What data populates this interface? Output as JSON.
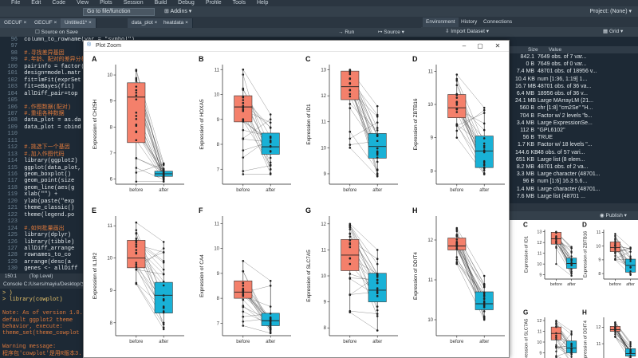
{
  "menubar": {
    "items": [
      "File",
      "Edit",
      "Code",
      "View",
      "Plots",
      "Session",
      "Build",
      "Debug",
      "Profile",
      "Tools",
      "Help"
    ]
  },
  "toolbar": {
    "goto_placeholder": "Go to file/function",
    "addins_label": "Addins",
    "project_label": "Project: (None)"
  },
  "editor": {
    "tabs": [
      "GECUF",
      "GECUF",
      "Untitled1*",
      "data_plot",
      "heatdata"
    ],
    "source_on_save": "Source on Save",
    "run_label": "Run",
    "source_label": "Source",
    "lines": [
      {
        "n": "96",
        "text": "    column_to_rowname(var = \"symbol\")",
        "kind": "code"
      },
      {
        "n": "97",
        "text": "",
        "kind": "code"
      },
      {
        "n": "98",
        "text": "  #.寻找差异基因",
        "kind": "cmt"
      },
      {
        "n": "99",
        "text": "  #.年龄、配对的差异分析",
        "kind": "cmt"
      },
      {
        "n": "100",
        "text": "  pairinfo = factor(",
        "kind": "code"
      },
      {
        "n": "101",
        "text": "  design=model.matr",
        "kind": "code"
      },
      {
        "n": "102",
        "text": "  fit=lmFit(exprSet",
        "kind": "code"
      },
      {
        "n": "103",
        "text": "  fit=eBayes(fit)",
        "kind": "code"
      },
      {
        "n": "104",
        "text": "  allDiff_pair=top",
        "kind": "code"
      },
      {
        "n": "105",
        "text": "",
        "kind": "code"
      },
      {
        "n": "106",
        "text": "  #.作图数据(配对)",
        "kind": "cmt"
      },
      {
        "n": "107",
        "text": "  #.重组各种数据",
        "kind": "cmt"
      },
      {
        "n": "108",
        "text": "  data_plot = as.da",
        "kind": "code"
      },
      {
        "n": "109",
        "text": "  data_plot = cbind",
        "kind": "code"
      },
      {
        "n": "110",
        "text": "",
        "kind": "code"
      },
      {
        "n": "111",
        "text": "",
        "kind": "code"
      },
      {
        "n": "112",
        "text": "  #.挑选下一个基因",
        "kind": "cmt"
      },
      {
        "n": "113",
        "text": "  #.加入作图代码",
        "kind": "cmt"
      },
      {
        "n": "114",
        "text": "  library(ggplot2)",
        "kind": "code"
      },
      {
        "n": "115",
        "text": "  ggplot(data_plot,",
        "kind": "code"
      },
      {
        "n": "116",
        "text": "    geom_boxplot()",
        "kind": "code"
      },
      {
        "n": "117",
        "text": "    geom_point(size",
        "kind": "code"
      },
      {
        "n": "118",
        "text": "    geom_line(aes(g",
        "kind": "code"
      },
      {
        "n": "119",
        "text": "    xlab(\"\") +",
        "kind": "code"
      },
      {
        "n": "120",
        "text": "    ylab(paste(\"exp",
        "kind": "code"
      },
      {
        "n": "121",
        "text": "    theme_classic()",
        "kind": "code"
      },
      {
        "n": "122",
        "text": "    theme(legend.po",
        "kind": "code"
      },
      {
        "n": "123",
        "text": "",
        "kind": "code"
      },
      {
        "n": "124",
        "text": "  #.如何批量画出",
        "kind": "cmt"
      },
      {
        "n": "125",
        "text": "  library(dplyr)",
        "kind": "code"
      },
      {
        "n": "126",
        "text": "  library(tibble)",
        "kind": "code"
      },
      {
        "n": "127",
        "text": "  allDiff_arrange",
        "kind": "code"
      },
      {
        "n": "128",
        "text": "    rownames_to_co",
        "kind": "code"
      },
      {
        "n": "129",
        "text": "    arrange(desc(a",
        "kind": "code"
      },
      {
        "n": "130",
        "text": "  genes <- allDiff",
        "kind": "code"
      }
    ],
    "status_position": "150:1",
    "status_scope": "(Top Level)"
  },
  "console": {
    "header": "Console  C:/Users/mayiu/Desktop/文章/",
    "lines": [
      {
        "text": "> )",
        "kind": "input"
      },
      {
        "text": "> library(cowplot)",
        "kind": "input"
      },
      {
        "text": "",
        "kind": "norm"
      },
      {
        "text": "Note: As of version 1.0.",
        "kind": "out"
      },
      {
        "text": "  default ggplot2 theme",
        "kind": "out"
      },
      {
        "text": "  behavior, execute:",
        "kind": "out"
      },
      {
        "text": "  theme_set(theme_cowplot",
        "kind": "out"
      },
      {
        "text": "",
        "kind": "norm"
      },
      {
        "text": "Warning message:",
        "kind": "out"
      },
      {
        "text": "程序包'cowplot'是用R版本3.",
        "kind": "out"
      }
    ]
  },
  "environment": {
    "tabs": [
      "Environment",
      "History",
      "Connections"
    ],
    "import_label": "Import Dataset",
    "grid_label": "Grid",
    "header": {
      "size": "Size",
      "value": "Value"
    },
    "rows": [
      {
        "size": "842.1",
        "value": "7649 obs. of 7 var..."
      },
      {
        "size": "0 B",
        "value": "7649 obs. of 0 var..."
      },
      {
        "size": "7.4 MB",
        "value": "48701 obs. of 18956 v..."
      },
      {
        "size": "10.4 KB",
        "value": "num [1:36, 1:19] 1..."
      },
      {
        "size": "16.7 MB",
        "value": "48701 obs. of 36 va..."
      },
      {
        "size": "6.4 MB",
        "value": "18956 obs. of 36 v..."
      },
      {
        "size": "24.1 MB",
        "value": "Large MArrayLM (21..."
      },
      {
        "size": "560 B",
        "value": "chr [1:8] \"cm2Se\" \"H..."
      },
      {
        "size": "704 B",
        "value": "Factor w/ 2 levels \"b..."
      },
      {
        "size": "3.4 MB",
        "value": "Large ExpressionSe..."
      },
      {
        "size": "112 B",
        "value": "\"GPL6102\""
      },
      {
        "size": "56 B",
        "value": "TRUE"
      },
      {
        "size": "1.7 KB",
        "value": "Factor w/ 18 levels \"..."
      },
      {
        "size": "144.6 KB",
        "value": "48 obs. of 57 vari..."
      },
      {
        "size": "651 KB",
        "value": "Large list (8 elem..."
      },
      {
        "size": "8.2 MB",
        "value": "48701 obs. of 2 va..."
      },
      {
        "size": "3.3 MB",
        "value": "Large character (48701..."
      },
      {
        "size": "96 B",
        "value": "num [1:6] 16.3 5.6..."
      },
      {
        "size": "1.4 MB",
        "value": "Large character (48701..."
      },
      {
        "size": "7.6 MB",
        "value": "Large list (48701 ..."
      }
    ]
  },
  "viewer": {
    "publish_label": "Publish"
  },
  "plot_window": {
    "title": "Plot Zoom"
  },
  "chart_data": {
    "type": "box",
    "categories": [
      "before",
      "after"
    ],
    "colors": {
      "before": "#f4806b",
      "after": "#19b1d6"
    },
    "panels": [
      {
        "letter": "A",
        "ylabel": "Expression of CH25H",
        "ylim": [
          5.8,
          10.4
        ],
        "yticks": [
          6,
          7,
          8,
          9,
          10
        ],
        "before": [
          5.9,
          7.4,
          9.15,
          9.7,
          10.2
        ],
        "after": [
          5.9,
          6.1,
          6.2,
          6.3,
          6.6
        ]
      },
      {
        "letter": "B",
        "ylabel": "Expression of HOXA5",
        "ylim": [
          6.4,
          11.2
        ],
        "yticks": [
          7,
          8,
          9,
          10,
          11
        ],
        "before": [
          6.8,
          8.9,
          9.5,
          9.95,
          11.0
        ],
        "after": [
          6.8,
          7.6,
          7.9,
          8.45,
          9.2
        ]
      },
      {
        "letter": "C",
        "ylabel": "Expression of ID1",
        "ylim": [
          8.6,
          13.2
        ],
        "yticks": [
          9,
          10,
          11,
          12,
          13
        ],
        "before": [
          10.0,
          11.85,
          12.35,
          12.95,
          13.0
        ],
        "after": [
          8.9,
          9.6,
          10.05,
          10.55,
          11.6
        ]
      },
      {
        "letter": "D",
        "ylabel": "Expression of ZBTB16",
        "ylim": [
          7.6,
          11.2
        ],
        "yticks": [
          8,
          9,
          10,
          11
        ],
        "before": [
          9.0,
          9.6,
          9.9,
          10.3,
          10.9
        ],
        "after": [
          7.9,
          8.1,
          8.6,
          9.05,
          9.9
        ]
      },
      {
        "letter": "E",
        "ylabel": "Expression of IL1R2",
        "ylim": [
          7.6,
          11.3
        ],
        "yticks": [
          8,
          9,
          10,
          11
        ],
        "before": [
          9.2,
          9.7,
          10.0,
          10.55,
          11.1
        ],
        "after": [
          7.8,
          8.3,
          8.85,
          9.25,
          10.5
        ]
      },
      {
        "letter": "F",
        "ylabel": "Expression of CA4",
        "ylim": [
          6.5,
          11.3
        ],
        "yticks": [
          7,
          8,
          9,
          10,
          11
        ],
        "before": [
          6.9,
          8.0,
          8.25,
          8.7,
          9.5
        ],
        "after": [
          6.6,
          6.9,
          7.1,
          7.4,
          8.7
        ]
      },
      {
        "letter": "G",
        "ylabel": "Expression of SLC7A5",
        "ylim": [
          7.7,
          12.3
        ],
        "yticks": [
          8,
          9,
          10,
          11,
          12
        ],
        "before": [
          8.6,
          10.2,
          10.8,
          11.4,
          12.0
        ],
        "after": [
          7.9,
          9.0,
          9.45,
          10.1,
          11.0
        ]
      },
      {
        "letter": "H",
        "ylabel": "Expression of DDIT4",
        "ylim": [
          9.6,
          12.6
        ],
        "yticks": [
          10,
          11,
          12
        ],
        "before": [
          11.4,
          11.75,
          11.85,
          12.05,
          12.3
        ],
        "after": [
          10.0,
          10.25,
          10.4,
          10.7,
          11.1
        ]
      }
    ],
    "viewer_panels": [
      {
        "letter": "C",
        "ylabel": "Expression of ID1"
      },
      {
        "letter": "D",
        "ylabel": "Expression of ZBTB16"
      },
      {
        "letter": "G",
        "ylabel": "Expression of SLC7A5"
      },
      {
        "letter": "H",
        "ylabel": "Expression of DDIT4"
      }
    ]
  }
}
